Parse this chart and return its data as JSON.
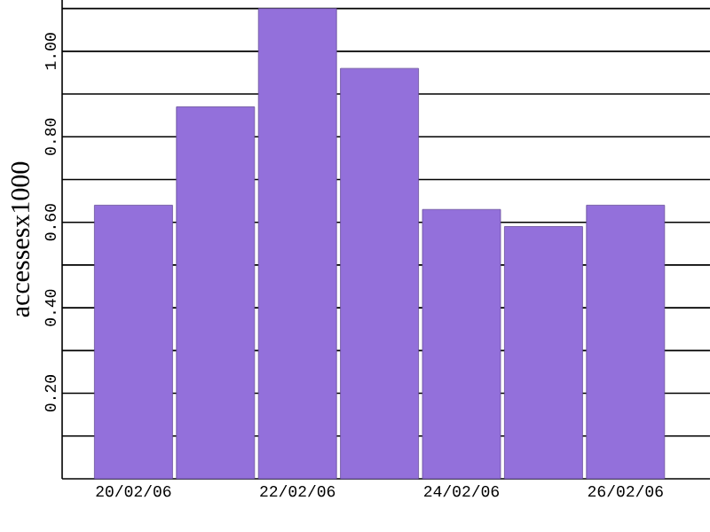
{
  "chart_data": {
    "type": "bar",
    "ylabel": "accessesx1000",
    "categories": [
      "20/02/06",
      null,
      "22/02/06",
      null,
      "24/02/06",
      null,
      "26/02/06"
    ],
    "values": [
      0.64,
      0.87,
      1.1,
      0.96,
      0.63,
      0.59,
      0.64
    ],
    "color": "#9370db",
    "ylim": [
      0,
      1.12
    ],
    "yticks": [
      {
        "value": 0.1,
        "label": null
      },
      {
        "value": 0.2,
        "label": "0.20"
      },
      {
        "value": 0.3,
        "label": null
      },
      {
        "value": 0.4,
        "label": "0.40"
      },
      {
        "value": 0.5,
        "label": null
      },
      {
        "value": 0.6,
        "label": "0.60"
      },
      {
        "value": 0.7,
        "label": null
      },
      {
        "value": 0.8,
        "label": "0.80"
      },
      {
        "value": 0.9,
        "label": null
      },
      {
        "value": 1.0,
        "label": "1.00"
      },
      {
        "value": 1.1,
        "label": null
      }
    ],
    "grid": "y"
  }
}
